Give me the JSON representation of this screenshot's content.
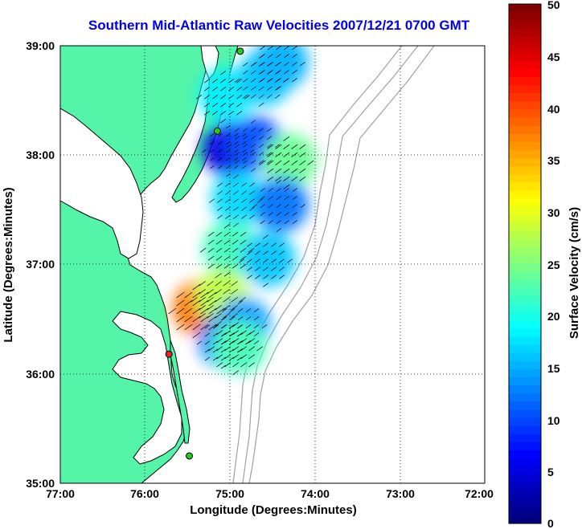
{
  "title": "Southern Mid-Atlantic Raw Velocities 2007/12/21 0700 GMT",
  "x_axis": {
    "label": "Longitude (Degrees:Minutes)",
    "ticks": [
      "77:00",
      "76:00",
      "75:00",
      "74:00",
      "73:00",
      "72:00"
    ]
  },
  "y_axis": {
    "label": "Latitude (Degrees:Minutes)",
    "ticks": [
      "39:00",
      "38:00",
      "37:00",
      "36:00",
      "35:00"
    ]
  },
  "colorbar": {
    "label": "Surface Velocity (cm/s)",
    "ticks": [
      "50",
      "45",
      "40",
      "35",
      "30",
      "25",
      "20",
      "15",
      "10",
      "5",
      "0"
    ],
    "min": 0,
    "max": 50,
    "colormap": "jet"
  },
  "colors": {
    "land": "#55f5a9",
    "water": "#ffffff",
    "coastline": "#000000",
    "bathymetry": "#a0a0a0",
    "title": "#0000ee",
    "grid": "#000000"
  },
  "stations": [
    {
      "lon": -74.88,
      "lat": 38.95,
      "color": "#22cc22"
    },
    {
      "lon": -75.15,
      "lat": 38.22,
      "color": "#22cc22"
    },
    {
      "lon": -75.72,
      "lat": 36.18,
      "color": "#ee2222"
    },
    {
      "lon": -75.48,
      "lat": 35.25,
      "color": "#22cc22"
    }
  ],
  "chart_data": {
    "type": "heatmap",
    "title": "Southern Mid-Atlantic Raw Velocities 2007/12/21 0700 GMT",
    "xlabel": "Longitude (Degrees:Minutes)",
    "ylabel": "Latitude (Degrees:Minutes)",
    "xlim": [
      -77,
      -72
    ],
    "ylim": [
      35,
      39
    ],
    "grid": true,
    "colorbar_range": [
      0,
      50
    ],
    "colorbar_label": "Surface Velocity (cm/s)",
    "velocity_regions": [
      {
        "lon": -75.05,
        "lat": 38.55,
        "speed_cm_s": 18
      },
      {
        "lon": -74.6,
        "lat": 38.7,
        "speed_cm_s": 16
      },
      {
        "lon": -74.4,
        "lat": 38.85,
        "speed_cm_s": 15
      },
      {
        "lon": -75.0,
        "lat": 38.05,
        "speed_cm_s": 5
      },
      {
        "lon": -74.7,
        "lat": 38.1,
        "speed_cm_s": 10
      },
      {
        "lon": -74.3,
        "lat": 37.95,
        "speed_cm_s": 24
      },
      {
        "lon": -74.9,
        "lat": 37.6,
        "speed_cm_s": 17
      },
      {
        "lon": -74.4,
        "lat": 37.55,
        "speed_cm_s": 12
      },
      {
        "lon": -75.0,
        "lat": 37.15,
        "speed_cm_s": 22
      },
      {
        "lon": -74.55,
        "lat": 37.05,
        "speed_cm_s": 16
      },
      {
        "lon": -75.35,
        "lat": 36.6,
        "speed_cm_s": 38
      },
      {
        "lon": -75.1,
        "lat": 36.7,
        "speed_cm_s": 28
      },
      {
        "lon": -74.85,
        "lat": 36.45,
        "speed_cm_s": 14
      },
      {
        "lon": -75.05,
        "lat": 36.3,
        "speed_cm_s": 12
      },
      {
        "lon": -74.9,
        "lat": 36.25,
        "speed_cm_s": 22
      }
    ]
  }
}
